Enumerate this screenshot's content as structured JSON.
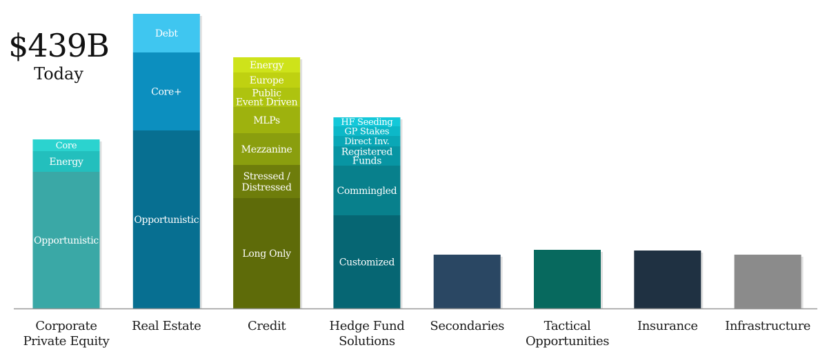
{
  "headline": {
    "amount": "$439B",
    "subtitle": "Today"
  },
  "chart_data": {
    "type": "bar",
    "stacked": true,
    "ylim": [
      0,
      430
    ],
    "colors": {
      "baseline": "#9a9a9a",
      "label": "#1a1a1a",
      "segment_text": "#ffffff",
      "segment_text_dark": "#ffffff"
    },
    "categories": [
      {
        "label": [
          "Corporate",
          "Private Equity"
        ],
        "segments": [
          {
            "name": "Opportunistic",
            "value": 198,
            "color": "#3aa8a6"
          },
          {
            "name": "Energy",
            "value": 30,
            "color": "#23bfbd"
          },
          {
            "name": "Core",
            "value": 17,
            "color": "#2bd3cf"
          }
        ]
      },
      {
        "label": [
          "Real Estate"
        ],
        "segments": [
          {
            "name": "Opportunistic",
            "value": 258,
            "color": "#076f91"
          },
          {
            "name": "Core+",
            "value": 113,
            "color": "#0c8fbf"
          },
          {
            "name": "Debt",
            "value": 56,
            "color": "#3fc6f0"
          }
        ]
      },
      {
        "label": [
          "Credit"
        ],
        "segments": [
          {
            "name": "Long Only",
            "value": 160,
            "color": "#5e6b09"
          },
          {
            "name": "Stressed / Distressed",
            "value": 48,
            "color": "#6e7d0b"
          },
          {
            "name": "Mezzanine",
            "value": 46,
            "color": "#8a9e0e"
          },
          {
            "name": "MLPs",
            "value": 38,
            "color": "#9eb20e"
          },
          {
            "name": "Public Event Driven",
            "value": 28,
            "color": "#aec30f"
          },
          {
            "name": "Europe",
            "value": 22,
            "color": "#bfd111"
          },
          {
            "name": "Energy",
            "value": 22,
            "color": "#cee31a"
          }
        ]
      },
      {
        "label": [
          "Hedge Fund",
          "Solutions"
        ],
        "segments": [
          {
            "name": "Customized",
            "value": 135,
            "color": "#066673"
          },
          {
            "name": "Commingled",
            "value": 72,
            "color": "#08808c"
          },
          {
            "name": "Registered Funds",
            "value": 28,
            "color": "#0895a3"
          },
          {
            "name": "Direct Inv.",
            "value": 15,
            "color": "#0aa7b6"
          },
          {
            "name": "GP Stakes",
            "value": 14,
            "color": "#0db8c8"
          },
          {
            "name": "HF Seeding",
            "value": 13,
            "color": "#14c8d9"
          }
        ]
      },
      {
        "label": [
          "Secondaries"
        ],
        "segments": [
          {
            "name": "",
            "value": 78,
            "color": "#2a4763"
          }
        ]
      },
      {
        "label": [
          "Tactical",
          "Opportunities"
        ],
        "segments": [
          {
            "name": "",
            "value": 85,
            "color": "#07695e"
          }
        ]
      },
      {
        "label": [
          "Insurance"
        ],
        "segments": [
          {
            "name": "",
            "value": 84,
            "color": "#1f3142"
          }
        ]
      },
      {
        "label": [
          "Infrastructure"
        ],
        "segments": [
          {
            "name": "",
            "value": 78,
            "color": "#8b8b8b"
          }
        ]
      }
    ]
  }
}
